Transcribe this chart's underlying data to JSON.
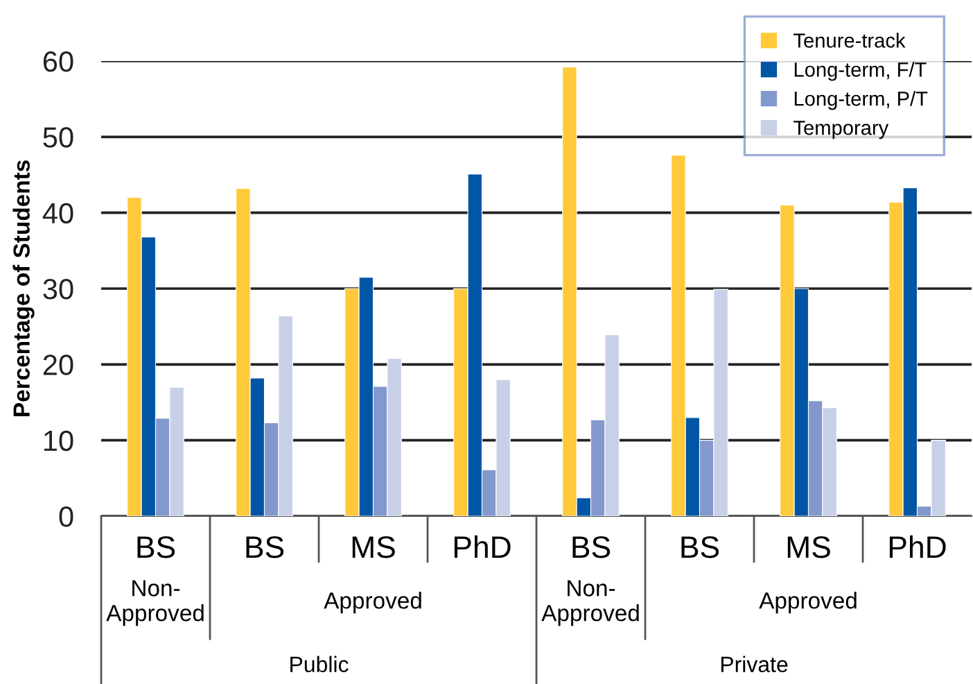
{
  "chart_data": {
    "type": "bar",
    "ylabel": "Percentage of Students",
    "categories": [
      "BS",
      "BS",
      "MS",
      "PhD",
      "BS",
      "BS",
      "MS",
      "PhD"
    ],
    "series": [
      {
        "name": "Tenure-track",
        "color": "#ffc93a",
        "values": [
          42.0,
          43.2,
          30.0,
          30.0,
          59.2,
          47.6,
          41.0,
          41.4
        ]
      },
      {
        "name": "Long-term, F/T",
        "color": "#0055a5",
        "values": [
          36.8,
          18.2,
          31.5,
          45.1,
          2.4,
          13.0,
          30.0,
          43.3
        ]
      },
      {
        "name": "Long-term, P/T",
        "color": "#8398cc",
        "values": [
          12.9,
          12.3,
          17.1,
          6.1,
          12.7,
          10.0,
          15.2,
          1.3
        ]
      },
      {
        "name": "Temporary",
        "color": "#c8d0e8",
        "values": [
          17.0,
          26.4,
          20.8,
          18.0,
          23.9,
          29.9,
          14.3,
          10.0
        ]
      }
    ],
    "annotations": [
      "Non-\nApproved",
      "Approved",
      "Non-\nApproved",
      "Approved",
      "Public",
      "Private"
    ],
    "ylim": [
      0,
      60
    ],
    "yticks": [
      0,
      10,
      20,
      30,
      40,
      50,
      60
    ],
    "grid": "y",
    "legend": "top right"
  }
}
